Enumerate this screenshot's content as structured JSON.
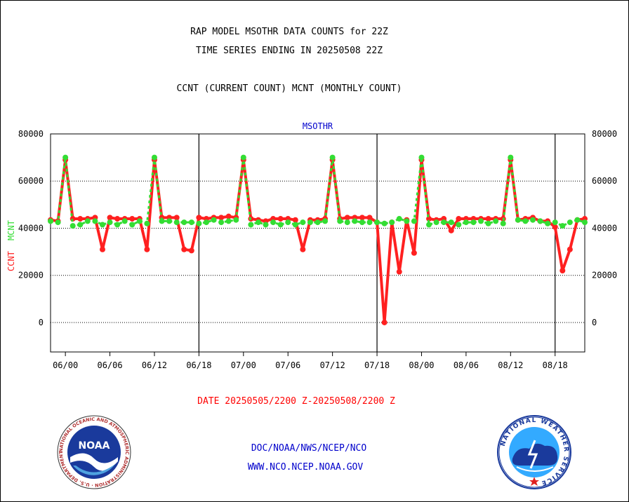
{
  "header": {
    "title_line1": "RAP MODEL MSOTHR DATA COUNTS for 22Z",
    "title_line2": "TIME SERIES ENDING IN 20250508 22Z",
    "subtitle": "CCNT (CURRENT COUNT) MCNT (MONTHLY COUNT)"
  },
  "footer": {
    "date_range": "DATE 20250505/2200 Z-20250508/2200 Z",
    "org_line": "DOC/NOAA/NWS/NCEP/NCO",
    "url_line": "WWW.NCO.NCEP.NOAA.GOV",
    "noaa_logo_text": "NOAA",
    "noaa_ring_text": "NATIONAL OCEANIC AND ATMOSPHERIC ADMINISTRATION · U.S. DEPARTMENT OF COMMERCE ·",
    "nws_ring_text": "NATIONAL WEATHER SERVICE"
  },
  "colors": {
    "ccnt": "#ff2020",
    "mcnt": "#33dd33",
    "plot_title": "#0000cc",
    "footer_blue": "#0000cc",
    "date_red": "#ff0000"
  },
  "chart_data": {
    "type": "line",
    "plot_title": "MSOTHR",
    "ylabel_ccnt": "CCNT",
    "ylabel_mcnt": "MCNT",
    "ylim": [
      -12500,
      80000
    ],
    "yticks": [
      0,
      20000,
      40000,
      60000,
      80000
    ],
    "ytick_labels": [
      "0",
      "20000",
      "40000",
      "60000",
      "80000"
    ],
    "xlim": [
      -2,
      70
    ],
    "xticks": [
      0,
      6,
      12,
      18,
      24,
      30,
      36,
      42,
      48,
      54,
      60,
      66
    ],
    "xtick_labels": [
      "06/00",
      "06/06",
      "06/12",
      "06/18",
      "07/00",
      "07/06",
      "07/12",
      "07/18",
      "08/00",
      "08/06",
      "08/12",
      "08/18"
    ],
    "vertical_day_lines": [
      18,
      42,
      66
    ],
    "grid": "horizontal dotted",
    "series": [
      {
        "name": "CCNT",
        "x": [
          -2,
          -1,
          0,
          1,
          2,
          3,
          4,
          5,
          6,
          7,
          8,
          9,
          10,
          11,
          12,
          13,
          14,
          15,
          16,
          17,
          18,
          19,
          20,
          21,
          22,
          23,
          24,
          25,
          26,
          27,
          28,
          29,
          30,
          31,
          32,
          33,
          34,
          35,
          36,
          37,
          38,
          39,
          40,
          41,
          42,
          43,
          44,
          45,
          46,
          47,
          48,
          49,
          50,
          51,
          52,
          53,
          54,
          55,
          56,
          57,
          58,
          59,
          60,
          61,
          62,
          63,
          64,
          65,
          66,
          67,
          68,
          69,
          70
        ],
        "values": [
          43500,
          43000,
          69000,
          44000,
          44000,
          44000,
          44500,
          31000,
          44500,
          44000,
          44000,
          44000,
          44000,
          31000,
          69000,
          44500,
          44500,
          44500,
          31000,
          30500,
          44500,
          44000,
          44500,
          44500,
          45000,
          44500,
          69000,
          44000,
          43500,
          43000,
          44000,
          44000,
          44000,
          43500,
          31000,
          43500,
          43500,
          44000,
          69000,
          44000,
          44500,
          44500,
          44500,
          44500,
          42500,
          0,
          42500,
          21500,
          43500,
          29500,
          69000,
          44000,
          43500,
          44000,
          39000,
          44000,
          44000,
          44000,
          44000,
          44000,
          44000,
          44000,
          69000,
          43500,
          44000,
          44500,
          43000,
          43000,
          40500,
          22000,
          31000,
          43500,
          44000
        ]
      },
      {
        "name": "MCNT",
        "x": [
          -2,
          -1,
          0,
          1,
          2,
          3,
          4,
          5,
          6,
          7,
          8,
          9,
          10,
          11,
          12,
          13,
          14,
          15,
          16,
          17,
          18,
          19,
          20,
          21,
          22,
          23,
          24,
          25,
          26,
          27,
          28,
          29,
          30,
          31,
          32,
          33,
          34,
          35,
          36,
          37,
          38,
          39,
          40,
          41,
          42,
          43,
          44,
          45,
          46,
          47,
          48,
          49,
          50,
          51,
          52,
          53,
          54,
          55,
          56,
          57,
          58,
          59,
          60,
          61,
          62,
          63,
          64,
          65,
          66,
          67,
          68,
          69,
          70
        ],
        "values": [
          43000,
          42500,
          70000,
          41000,
          41500,
          43000,
          43000,
          41500,
          42500,
          41500,
          43000,
          41500,
          43000,
          42000,
          70000,
          43000,
          43000,
          42500,
          42500,
          42500,
          42000,
          42500,
          43500,
          42500,
          43000,
          43500,
          70000,
          41500,
          42500,
          41500,
          42500,
          41500,
          42500,
          41500,
          42500,
          42500,
          42500,
          43000,
          70000,
          43000,
          42500,
          43000,
          42500,
          42500,
          42500,
          42000,
          42500,
          44000,
          43000,
          43000,
          70000,
          41500,
          42500,
          42500,
          42500,
          41500,
          42500,
          42500,
          43000,
          42000,
          43000,
          42000,
          70000,
          43500,
          43000,
          43500,
          43000,
          42000,
          42500,
          41000,
          42500,
          43500,
          42500
        ]
      }
    ]
  }
}
